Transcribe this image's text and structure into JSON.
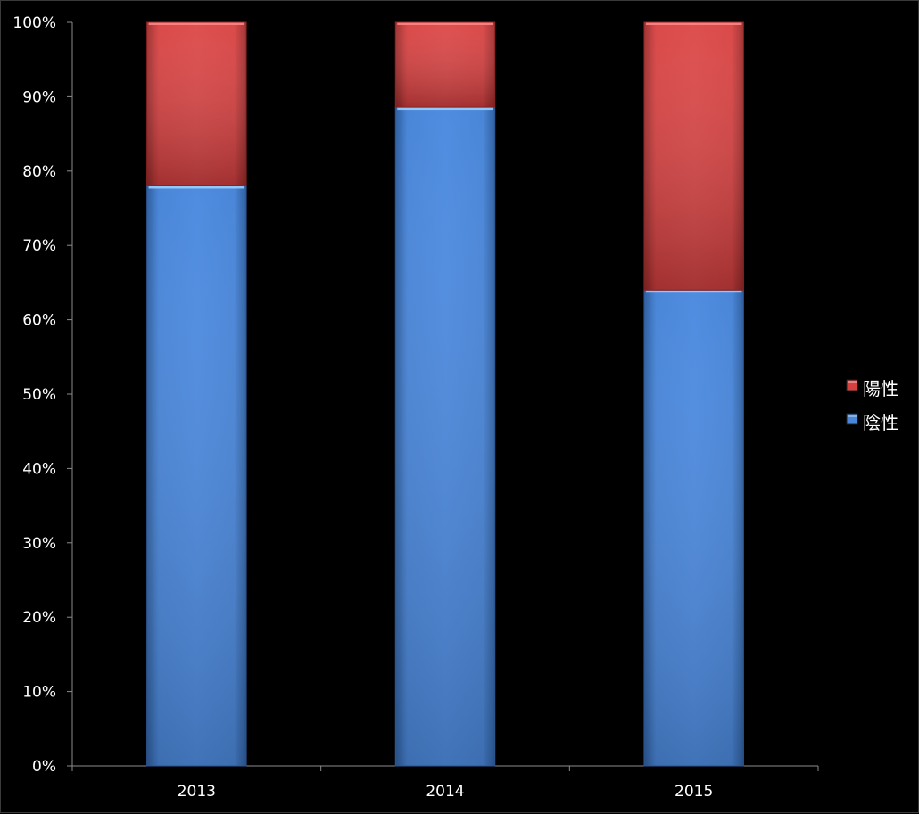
{
  "chart_data": {
    "type": "bar",
    "stacked": true,
    "percent": true,
    "categories": [
      "2013",
      "2014",
      "2015"
    ],
    "series": [
      {
        "name": "陰性",
        "values": [
          78,
          88.6,
          64
        ],
        "color": "#4a86d8"
      },
      {
        "name": "陽性",
        "values": [
          22,
          11.4,
          36
        ],
        "color": "#d84040"
      }
    ],
    "ylim": [
      0,
      100
    ],
    "yticks": [
      "0%",
      "10%",
      "20%",
      "30%",
      "40%",
      "50%",
      "60%",
      "70%",
      "80%",
      "90%",
      "100%"
    ],
    "legend": {
      "position": "right",
      "entries": [
        "陽性",
        "陰性"
      ]
    },
    "grid": false,
    "background": "#000000"
  }
}
